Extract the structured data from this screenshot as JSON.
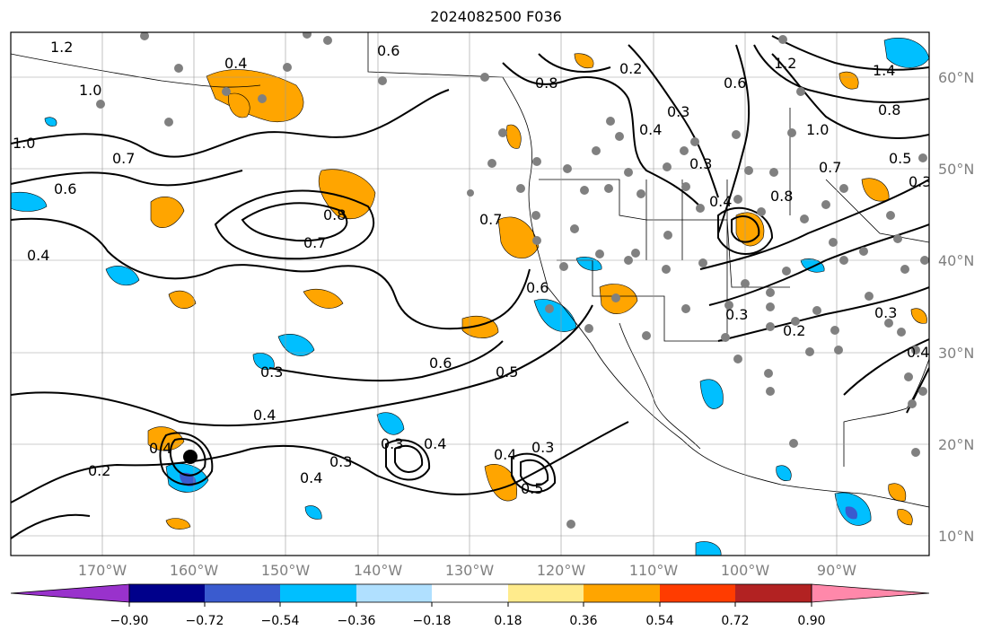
{
  "title": "2024082500 F036",
  "lat_labels": [
    "60°N",
    "50°N",
    "40°N",
    "30°N",
    "20°N",
    "10°N"
  ],
  "lon_labels": [
    "170°W",
    "160°W",
    "150°W",
    "140°W",
    "130°W",
    "120°W",
    "110°W",
    "100°W",
    "90°W"
  ],
  "colorbar": {
    "colors": [
      "#9932cc",
      "#00008b",
      "#3a5bcf",
      "#00bfff",
      "#b0e0ff",
      "#ffffff",
      "#ffeb8c",
      "#ffa500",
      "#ff3c00",
      "#b22222",
      "#ff88aa"
    ],
    "labels": [
      "−0.90",
      "−0.72",
      "−0.54",
      "−0.36",
      "−0.18",
      "0.18",
      "0.36",
      "0.54",
      "0.72",
      "0.90"
    ]
  },
  "contour_labels": [
    "1.2",
    "0.6",
    "0.4",
    "1.0",
    "1.0",
    "0.7",
    "0.6",
    "0.4",
    "0.8",
    "0.7",
    "0.6",
    "0.5",
    "0.3",
    "0.4",
    "0.4",
    "0.2",
    "0.4",
    "0.3",
    "0.3",
    "0.4",
    "0.4",
    "0.3",
    "0.5",
    "0.7",
    "0.6",
    "0.8",
    "0.2",
    "0.3",
    "0.4",
    "0.3",
    "0.4",
    "0.6",
    "0.8",
    "0.7",
    "1.0",
    "1.2",
    "1.4",
    "0.8",
    "0.5",
    "0.3",
    "0.3",
    "0.2",
    "0.3",
    "0.4"
  ],
  "storm_marker": "tropical-cyclone-center"
}
